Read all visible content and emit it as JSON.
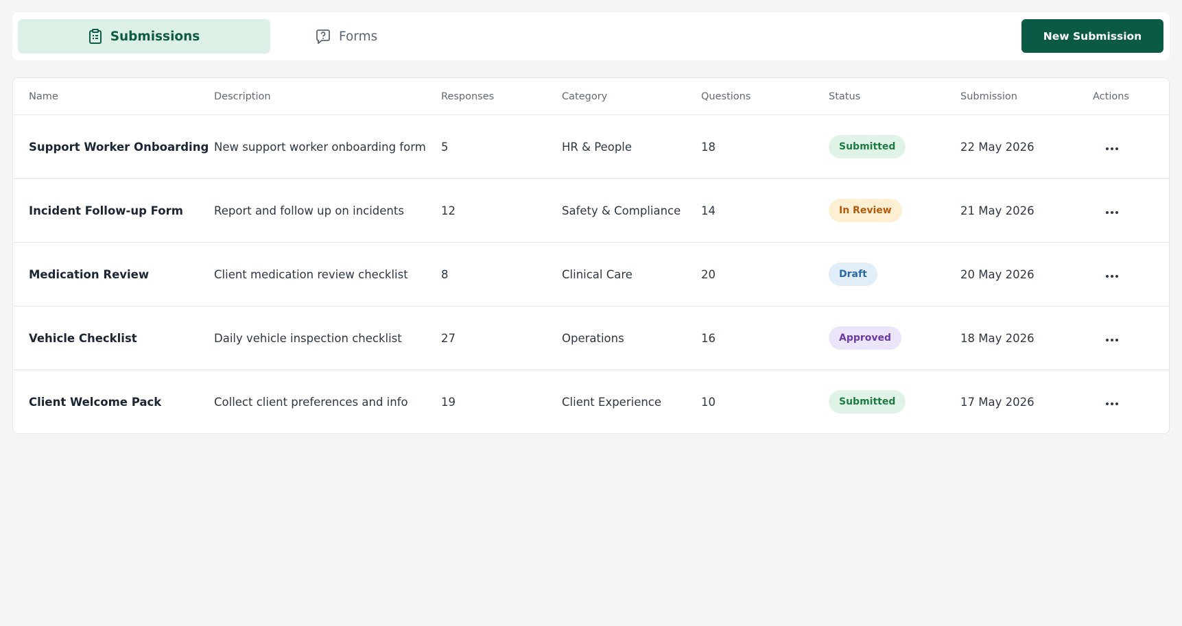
{
  "tabs": {
    "submissions": "Submissions",
    "forms": "Forms"
  },
  "button": "New Submission",
  "table": {
    "headers": [
      "Name",
      "Description",
      "Responses",
      "Category",
      "Questions",
      "Status",
      "Submission",
      "Actions"
    ],
    "rows": [
      [
        "Support Worker Onboarding",
        "New support worker onboarding form",
        "5",
        "HR & People",
        "18",
        "Submitted",
        "22 May 2026"
      ],
      [
        "Incident Follow-up Form",
        "Report and follow up on incidents",
        "12",
        "Safety & Compliance",
        "14",
        "In Review",
        "21 May 2026"
      ],
      [
        "Medication Review",
        "Client medication review checklist",
        "8",
        "Clinical Care",
        "20",
        "Draft",
        "20 May 2026"
      ],
      [
        "Vehicle Checklist",
        "Daily vehicle inspection checklist",
        "27",
        "Operations",
        "16",
        "Approved",
        "18 May 2026"
      ],
      [
        "Client Welcome Pack",
        "Collect client preferences and info",
        "19",
        "Client Experience",
        "10",
        "Submitted",
        "17 May 2026"
      ]
    ]
  }
}
